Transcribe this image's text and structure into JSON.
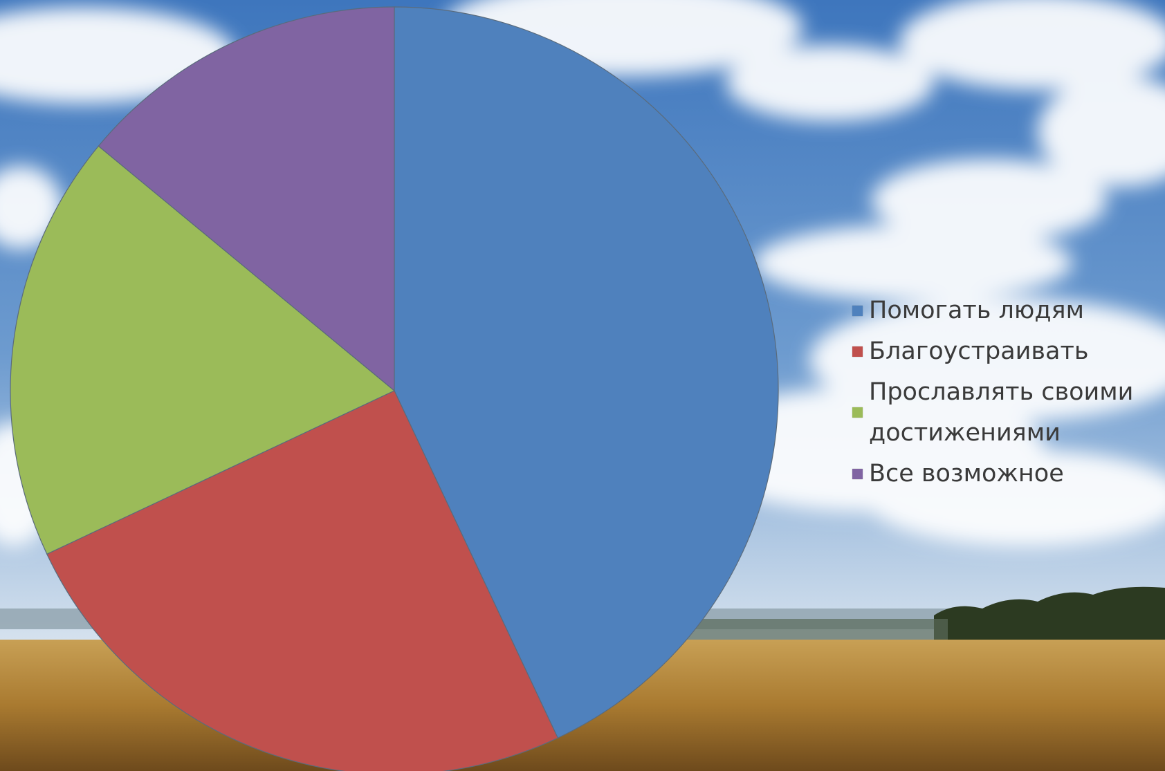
{
  "slide": {
    "title": ""
  },
  "colors": {
    "sky_top": "#4d82c4",
    "sky_bottom": "#dbe6f1",
    "field": "#b88a3a",
    "treeline": "#2f3b22",
    "slice_border": "#5a6b7c"
  },
  "chart_data": {
    "type": "pie",
    "title": "",
    "legend_position": "right",
    "start_angle_deg": 0,
    "direction": "clockwise",
    "slices": [
      {
        "label": "Помогать людям",
        "value": 43,
        "color": "#4f81bd"
      },
      {
        "label": "Благоустраивать",
        "value": 25,
        "color": "#c0504d"
      },
      {
        "label": "Прославлять своими достижениями",
        "value": 18,
        "color": "#9bbb59"
      },
      {
        "label": "Все возможное",
        "value": 14,
        "color": "#8064a2"
      }
    ]
  }
}
